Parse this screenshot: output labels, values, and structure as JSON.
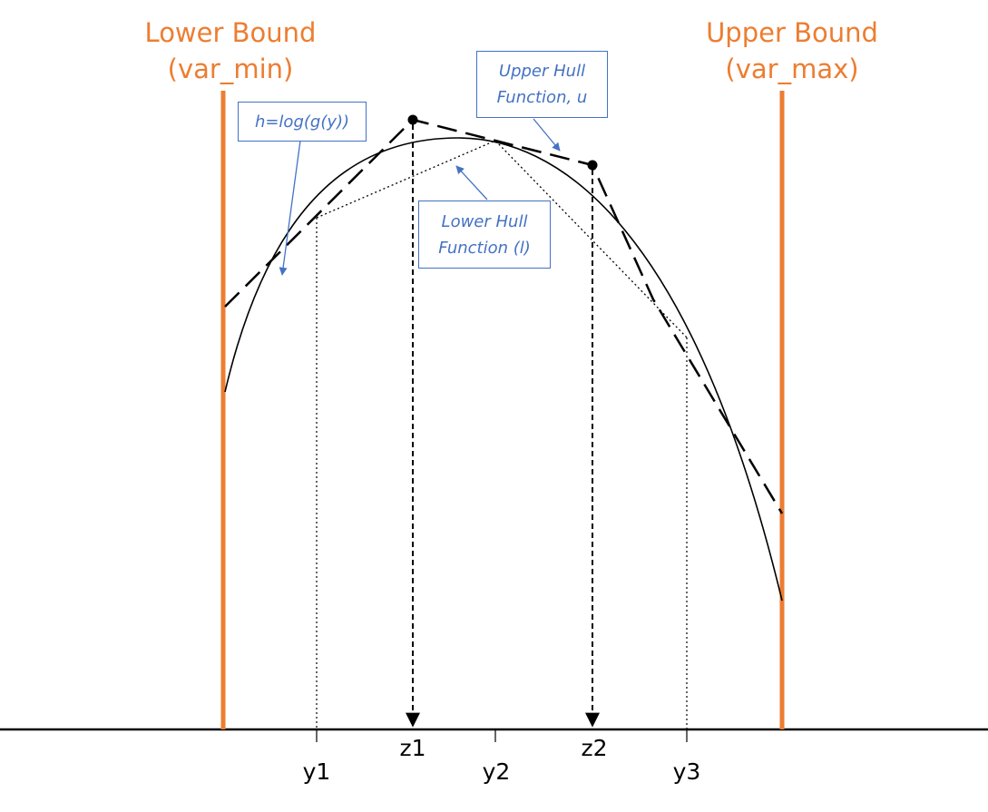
{
  "lower_bound": {
    "line1": "Lower Bound",
    "line2": "(var_min)"
  },
  "upper_bound": {
    "line1": "Upper Bound",
    "line2": "(var_max)"
  },
  "callouts": {
    "h": "h=log(g(y))",
    "upper_hull": {
      "line1": "Upper Hull",
      "line2": "Function, u"
    },
    "lower_hull": {
      "line1": "Lower Hull",
      "line2": "Function (l)"
    }
  },
  "axis_labels": {
    "y1": "y1",
    "z1": "z1",
    "y2": "y2",
    "z2": "z2",
    "y3": "y3"
  },
  "colors": {
    "bound": "#ED7D31",
    "callout": "#4472C4",
    "curve": "#000000"
  }
}
